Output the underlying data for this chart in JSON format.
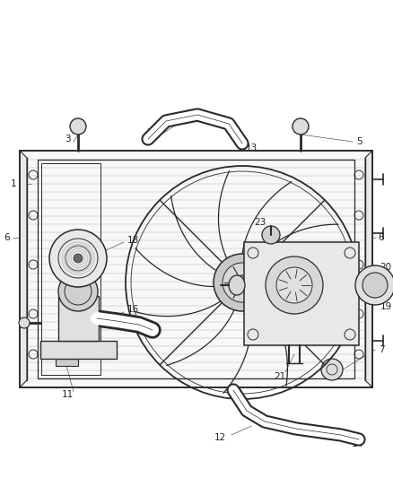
{
  "bg_color": "#ffffff",
  "line_color": "#2a2a2a",
  "label_color": "#222222",
  "label_fontsize": 7.5,
  "fig_width": 4.38,
  "fig_height": 5.33,
  "dpi": 100
}
